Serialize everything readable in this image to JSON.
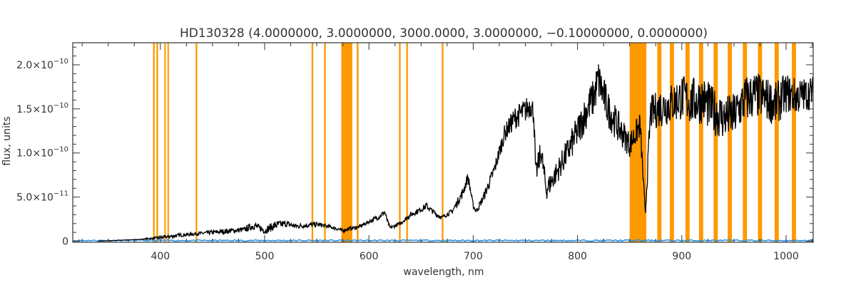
{
  "chart_data": {
    "type": "line",
    "title": "HD130328    (4.0000000, 3.0000000, 3000.0000, 3.0000000, −0.10000000, 0.0000000)",
    "xlabel": "wavelength, nm",
    "ylabel": "flux, units",
    "xlim": [
      316,
      1026
    ],
    "ylim": [
      -1.2e-12,
      2.25e-10
    ],
    "x_ticks": [
      400,
      500,
      600,
      700,
      800,
      900,
      1000
    ],
    "x_tick_labels": [
      "400",
      "500",
      "600",
      "700",
      "800",
      "900",
      "1000"
    ],
    "y_ticks": [
      0,
      5e-11,
      1e-10,
      1.5e-10,
      2e-10
    ],
    "y_tick_labels": [
      {
        "mantissa": "0",
        "exponent": ""
      },
      {
        "mantissa": "5.0×10",
        "exponent": "−11"
      },
      {
        "mantissa": "1.0×10",
        "exponent": "−10"
      },
      {
        "mantissa": "1.5×10",
        "exponent": "−10"
      },
      {
        "mantissa": "2.0×10",
        "exponent": "−10"
      }
    ],
    "grid": false,
    "colors": {
      "spectrum": "#000000",
      "error": "#1f8fe8",
      "masked_band": "#ff9900",
      "axes": "#333333"
    },
    "masked_bands": [
      {
        "start": 393.0,
        "end": 394.6
      },
      {
        "start": 396.2,
        "end": 397.8
      },
      {
        "start": 403.8,
        "end": 405.2
      },
      {
        "start": 406.8,
        "end": 408.2
      },
      {
        "start": 433.8,
        "end": 435.4
      },
      {
        "start": 545.0,
        "end": 546.6
      },
      {
        "start": 557.0,
        "end": 558.6
      },
      {
        "start": 573.5,
        "end": 584.0
      },
      {
        "start": 588.3,
        "end": 590.0
      },
      {
        "start": 628.8,
        "end": 630.4
      },
      {
        "start": 635.8,
        "end": 637.4
      },
      {
        "start": 669.8,
        "end": 671.4
      },
      {
        "start": 850.0,
        "end": 866.0
      },
      {
        "start": 876.5,
        "end": 880.5
      },
      {
        "start": 888.5,
        "end": 892.5
      },
      {
        "start": 903.5,
        "end": 907.5
      },
      {
        "start": 916.5,
        "end": 920.5
      },
      {
        "start": 930.5,
        "end": 934.5
      },
      {
        "start": 944.0,
        "end": 948.0
      },
      {
        "start": 958.5,
        "end": 962.5
      },
      {
        "start": 973.0,
        "end": 977.0
      },
      {
        "start": 989.0,
        "end": 993.0
      },
      {
        "start": 1005.5,
        "end": 1009.5
      }
    ],
    "series": [
      {
        "x": [
          340,
          360,
          380,
          400,
          420,
          440,
          460,
          480,
          490,
          495,
          500,
          510,
          520,
          530,
          540,
          550,
          560,
          570,
          575,
          580,
          590,
          600,
          610,
          615,
          620,
          630,
          640,
          650,
          655,
          660,
          665,
          670,
          680,
          690,
          695,
          700,
          703,
          710,
          720,
          730,
          740,
          750,
          755,
          758,
          760,
          765,
          770,
          780,
          790,
          800,
          810,
          815,
          820,
          830,
          840,
          850,
          855,
          860,
          865,
          870,
          880,
          890,
          900,
          910,
          920,
          930,
          940,
          950,
          960,
          970,
          980,
          990,
          1000,
          1010,
          1020,
          1026
        ],
        "y": [
          0,
          1e-12,
          2e-12,
          4e-12,
          7e-12,
          9e-12,
          1.1e-11,
          1.3e-11,
          1.8e-11,
          1.5e-11,
          1.2e-11,
          1.8e-11,
          2e-11,
          1.7e-11,
          1.8e-11,
          1.9e-11,
          1.7e-11,
          1.4e-11,
          1.2e-11,
          1.4e-11,
          1.6e-11,
          2.2e-11,
          2.8e-11,
          3.3e-11,
          1.5e-11,
          2e-11,
          3e-11,
          3.6e-11,
          4e-11,
          3.5e-11,
          3e-11,
          2.7e-11,
          3.4e-11,
          5.5e-11,
          7.3e-11,
          4e-11,
          3.4e-11,
          5e-11,
          8e-11,
          1.22e-10,
          1.4e-10,
          1.48e-10,
          1.55e-10,
          1.46e-10,
          7.5e-11,
          1.02e-10,
          5.8e-11,
          7.8e-11,
          1e-10,
          1.24e-10,
          1.52e-10,
          1.62e-10,
          1.83e-10,
          1.48e-10,
          1.28e-10,
          1.1e-10,
          1.2e-10,
          1.32e-10,
          3e-11,
          1.45e-10,
          1.52e-10,
          1.56e-10,
          1.63e-10,
          1.58e-10,
          1.61e-10,
          1.48e-10,
          1.4e-10,
          1.42e-10,
          1.6e-10,
          1.66e-10,
          1.62e-10,
          1.55e-10,
          1.68e-10,
          1.64e-10,
          1.67e-10,
          1.69e-10
        ],
        "noise": [
          0,
          0,
          0,
          2e-12,
          2e-12,
          2e-12,
          3e-12,
          3e-12,
          5e-12,
          4e-12,
          4e-12,
          5e-12,
          4e-12,
          3e-12,
          3e-12,
          3e-12,
          2e-12,
          2e-12,
          2e-12,
          2e-12,
          2e-12,
          2e-12,
          3e-12,
          3e-12,
          2e-12,
          2e-12,
          3e-12,
          3e-12,
          4e-12,
          3e-12,
          3e-12,
          2e-12,
          3e-12,
          6e-12,
          6e-12,
          3e-12,
          3e-12,
          5e-12,
          8e-12,
          1e-11,
          1.3e-11,
          1.4e-11,
          1.4e-11,
          1.4e-11,
          1.2e-11,
          1.5e-11,
          1.2e-11,
          1.3e-11,
          1.6e-11,
          1.9e-11,
          2.1e-11,
          2.2e-11,
          2.4e-11,
          2.1e-11,
          1.8e-11,
          1.5e-11,
          1.5e-11,
          1.5e-11,
          5e-12,
          1.9e-11,
          2.3e-11,
          2.4e-11,
          2.6e-11,
          2.8e-11,
          2.8e-11,
          2.7e-11,
          2.6e-11,
          2.6e-11,
          2.8e-11,
          2.7e-11,
          2.5e-11,
          2.5e-11,
          2.3e-11,
          2.1e-11,
          1.9e-11,
          1.9e-11
        ]
      },
      {
        "x": [
          316,
          1026
        ],
        "y": [
          0,
          0
        ]
      }
    ]
  }
}
